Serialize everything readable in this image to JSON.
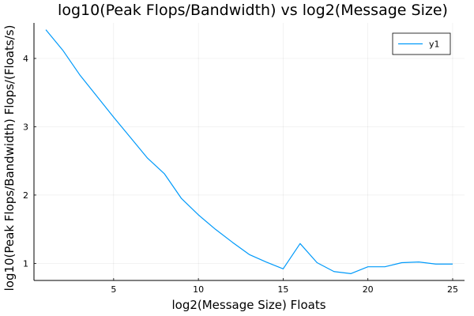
{
  "chart_data": {
    "type": "line",
    "title": "log10(Peak Flops/Bandwidth) vs log2(Message Size)",
    "xlabel": "log2(Message Size) Floats",
    "ylabel": "log10(Peak Flops/Bandwidth) Flops/(Floats/s)",
    "xlim": [
      0.3,
      25.7
    ],
    "ylim": [
      0.75,
      4.52
    ],
    "xticks": [
      5,
      10,
      15,
      20,
      25
    ],
    "yticks": [
      1,
      2,
      3,
      4
    ],
    "grid": true,
    "legend_position": "top-right",
    "series": [
      {
        "name": "y1",
        "color": "#009AFA",
        "x": [
          1,
          2,
          3,
          4,
          5,
          6,
          7,
          8,
          9,
          10,
          11,
          12,
          13,
          14,
          15,
          16,
          17,
          18,
          19,
          20,
          21,
          22,
          23,
          24,
          25
        ],
        "y": [
          4.42,
          4.12,
          3.76,
          3.45,
          3.14,
          2.84,
          2.54,
          2.31,
          1.95,
          1.71,
          1.5,
          1.31,
          1.13,
          1.02,
          0.92,
          1.29,
          1.01,
          0.88,
          0.85,
          0.95,
          0.95,
          1.01,
          1.02,
          0.99,
          0.99
        ]
      }
    ]
  }
}
